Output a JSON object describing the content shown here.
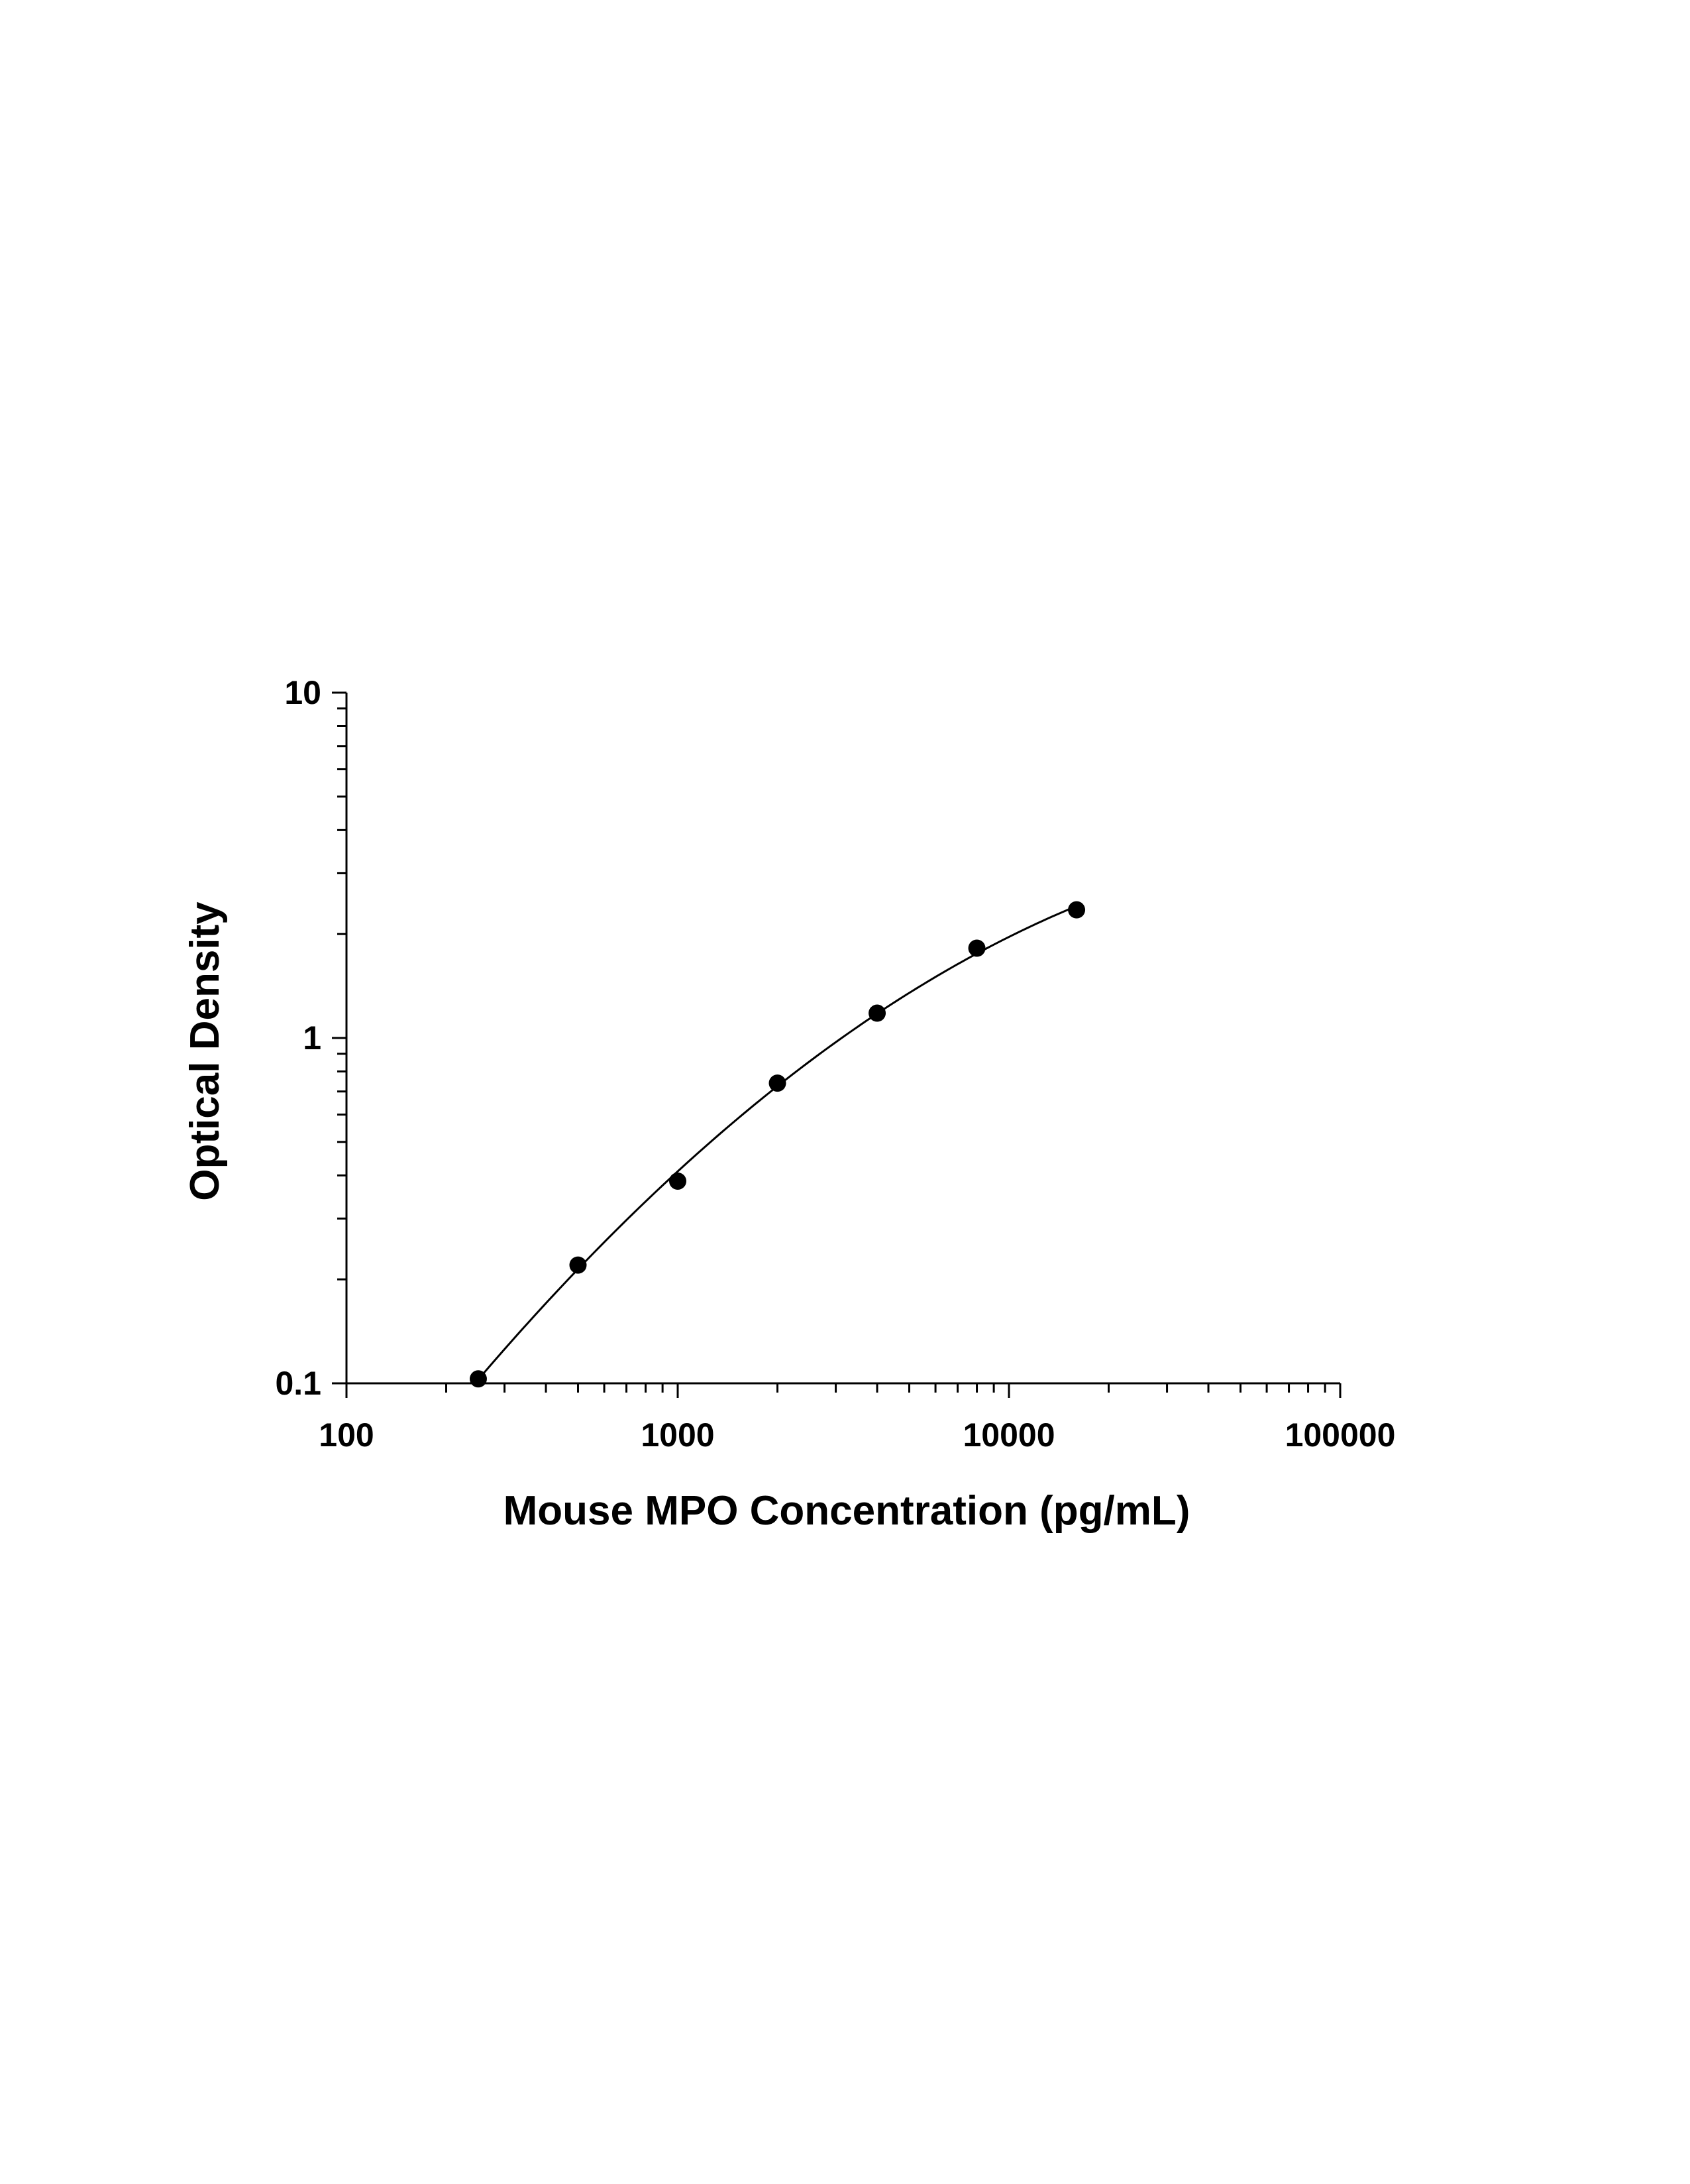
{
  "chart_data": {
    "type": "scatter",
    "title": "",
    "xlabel": "Mouse MPO Concentration (pg/mL)",
    "ylabel": "Optical Density",
    "x_scale": "log",
    "y_scale": "log",
    "xlim": [
      100,
      100000
    ],
    "ylim": [
      0.1,
      10
    ],
    "x_ticks": [
      100,
      1000,
      10000,
      100000
    ],
    "x_tick_labels": [
      "100",
      "1000",
      "10000",
      "100000"
    ],
    "y_ticks": [
      0.1,
      1,
      10
    ],
    "y_tick_labels": [
      "0.1",
      "1",
      "10"
    ],
    "grid": false,
    "legend": "none",
    "series": [
      {
        "x": [
          250,
          500,
          1000,
          2000,
          4000,
          8000,
          16000
        ],
        "y": [
          0.103,
          0.22,
          0.385,
          0.74,
          1.18,
          1.82,
          2.35
        ],
        "marker": "filled-circle",
        "fit_line": true
      }
    ],
    "colors": {
      "points": "#000000",
      "line": "#000000",
      "axes": "#000000"
    }
  }
}
